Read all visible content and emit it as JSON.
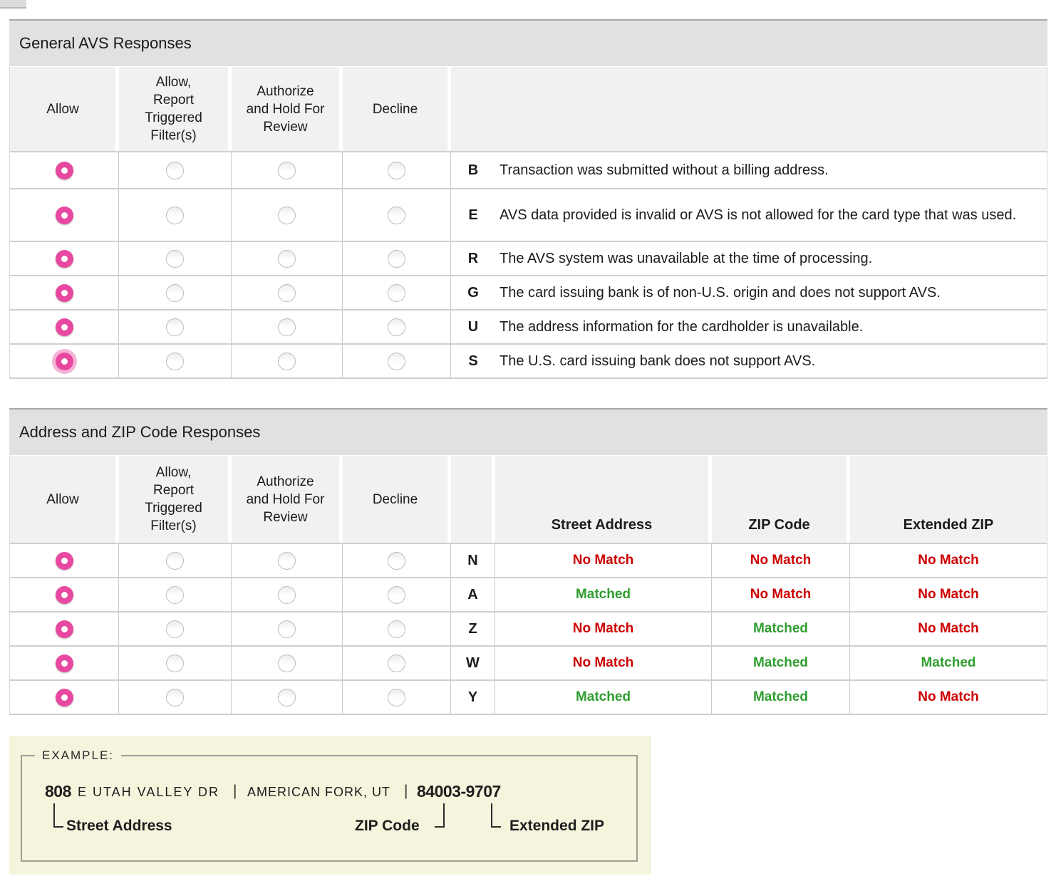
{
  "colors": {
    "selected_radio_pink": "#e8489f",
    "focus_ring_pink": "#f5b4d7",
    "matched_green": "#2f9e2f",
    "no_match_red": "#cc0000",
    "title_bar_bg": "#e1e1e1",
    "header_cell_bg": "#f1f1f1",
    "example_box_bg": "#f5f4dd"
  },
  "radio_option_names": [
    "Allow",
    "Allow, Report Triggered Filter(s)",
    "Authorize and Hold For Review",
    "Decline"
  ],
  "general_table": {
    "title": "General AVS Responses",
    "column_headers": [
      "Allow",
      "Allow,\nReport\nTriggered\nFilter(s)",
      "Authorize\nand Hold For\nReview",
      "Decline"
    ],
    "rows": [
      {
        "code": "B",
        "description": "Transaction was submitted without a billing address.",
        "selected": "Allow",
        "focused": false
      },
      {
        "code": "E",
        "description": "AVS data provided is invalid or AVS is not allowed for the card type that was used.",
        "selected": "Allow",
        "focused": false
      },
      {
        "code": "R",
        "description": "The AVS system was unavailable at the time of processing.",
        "selected": "Allow",
        "focused": false
      },
      {
        "code": "G",
        "description": "The card issuing bank is of non-U.S. origin and does not support AVS.",
        "selected": "Allow",
        "focused": false
      },
      {
        "code": "U",
        "description": "The address information for the cardholder is unavailable.",
        "selected": "Allow",
        "focused": false
      },
      {
        "code": "S",
        "description": "The U.S. card issuing bank does not support AVS.",
        "selected": "Allow",
        "focused": true
      }
    ]
  },
  "address_table": {
    "title": "Address and ZIP Code Responses",
    "column_headers": [
      "Allow",
      "Allow,\nReport\nTriggered\nFilter(s)",
      "Authorize\nand Hold For\nReview",
      "Decline"
    ],
    "match_headers": [
      "Street Address",
      "ZIP Code",
      "Extended ZIP"
    ],
    "rows": [
      {
        "code": "N",
        "street_address": "No Match",
        "zip_code": "No Match",
        "extended_zip": "No Match",
        "selected": "Allow",
        "focused": false
      },
      {
        "code": "A",
        "street_address": "Matched",
        "zip_code": "No Match",
        "extended_zip": "No Match",
        "selected": "Allow",
        "focused": false
      },
      {
        "code": "Z",
        "street_address": "No Match",
        "zip_code": "Matched",
        "extended_zip": "No Match",
        "selected": "Allow",
        "focused": false
      },
      {
        "code": "W",
        "street_address": "No Match",
        "zip_code": "Matched",
        "extended_zip": "Matched",
        "selected": "Allow",
        "focused": false
      },
      {
        "code": "Y",
        "street_address": "Matched",
        "zip_code": "Matched",
        "extended_zip": "No Match",
        "selected": "Allow",
        "focused": false
      }
    ]
  },
  "example_box": {
    "legend": "EXAMPLE:",
    "street_number": "808",
    "street_name": "E UTAH VALLEY DR",
    "separator": "|",
    "city_state": "AMERICAN FORK, UT",
    "zip_full": "84003-9707",
    "street_label": "Street Address",
    "zip_label": "ZIP Code",
    "extended_label": "Extended ZIP"
  }
}
